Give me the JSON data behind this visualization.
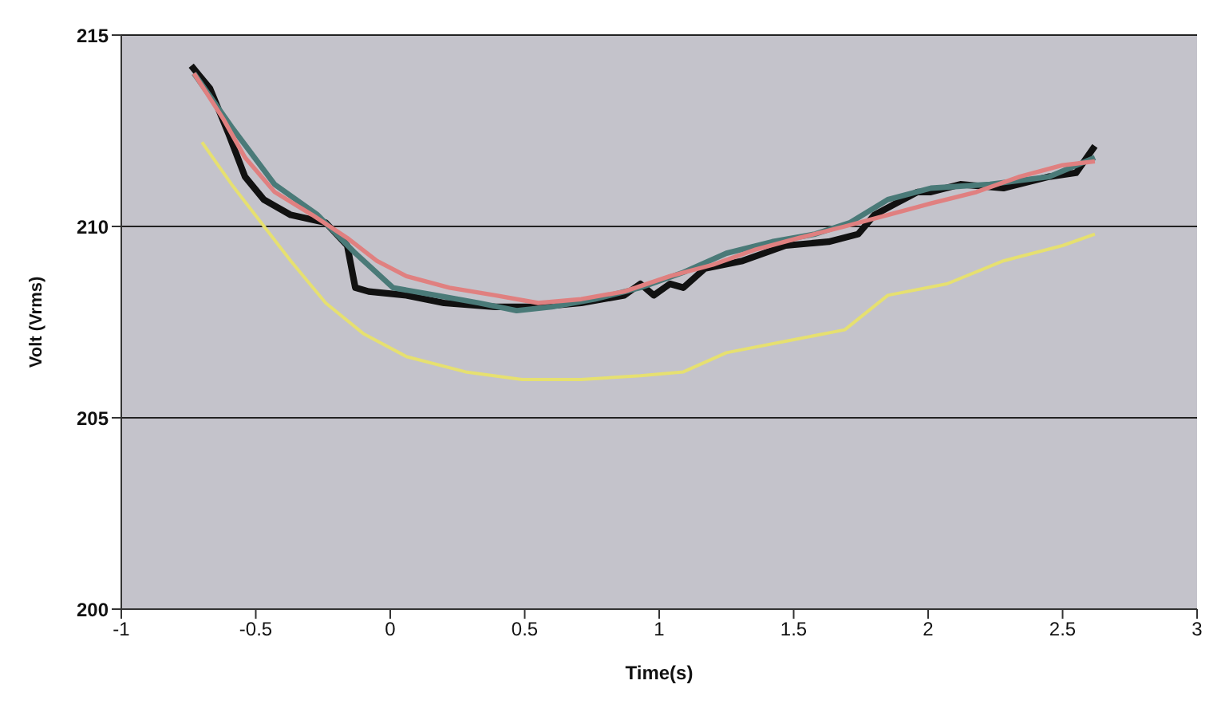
{
  "chart_data": {
    "type": "line",
    "xlabel": "Time(s)",
    "ylabel": "Volt (Vrms)",
    "xlim": [
      -1,
      3
    ],
    "xticks": [
      -1,
      -0.5,
      0,
      0.5,
      1,
      1.5,
      2,
      2.5,
      3
    ],
    "ylim": [
      200,
      215
    ],
    "yticks": [
      200,
      205,
      210,
      215
    ],
    "grid": "y",
    "marker": "none",
    "line_style": "solid",
    "series": [
      {
        "color": "#111111",
        "x": [
          -0.74,
          -0.67,
          -0.6,
          -0.54,
          -0.47,
          -0.37,
          -0.24,
          -0.16,
          -0.13,
          -0.08,
          0.06,
          0.2,
          0.39,
          0.55,
          0.71,
          0.87,
          0.93,
          0.98,
          1.04,
          1.09,
          1.17,
          1.31,
          1.47,
          1.63,
          1.74,
          1.8,
          1.88,
          1.96,
          2.01,
          2.12,
          2.28,
          2.45,
          2.55,
          2.62
        ],
        "values": [
          214.2,
          213.6,
          212.4,
          211.3,
          210.7,
          210.3,
          210.1,
          209.5,
          208.4,
          208.3,
          208.2,
          208.0,
          207.9,
          207.9,
          208.0,
          208.2,
          208.5,
          208.2,
          208.5,
          208.4,
          208.9,
          209.1,
          209.5,
          209.6,
          209.8,
          210.3,
          210.6,
          210.9,
          210.9,
          211.1,
          211.0,
          211.3,
          211.4,
          212.1
        ]
      },
      {
        "color": "#4a7a78",
        "x": [
          -0.73,
          -0.59,
          -0.43,
          -0.27,
          -0.13,
          0.01,
          0.17,
          0.33,
          0.47,
          0.6,
          0.76,
          0.93,
          1.09,
          1.25,
          1.42,
          1.58,
          1.71,
          1.85,
          2.01,
          2.23,
          2.45,
          2.62
        ],
        "values": [
          214.0,
          212.6,
          211.1,
          210.3,
          209.3,
          208.4,
          208.2,
          208.0,
          207.8,
          207.9,
          208.1,
          208.4,
          208.8,
          209.3,
          209.6,
          209.8,
          210.1,
          210.7,
          211.0,
          211.1,
          211.3,
          211.8
        ]
      },
      {
        "color": "#e08080",
        "x": [
          -0.73,
          -0.62,
          -0.54,
          -0.43,
          -0.29,
          -0.16,
          -0.05,
          0.06,
          0.22,
          0.39,
          0.55,
          0.71,
          0.87,
          1.04,
          1.2,
          1.36,
          1.52,
          1.69,
          1.85,
          2.01,
          2.18,
          2.34,
          2.5,
          2.62
        ],
        "values": [
          214.0,
          212.8,
          211.8,
          210.9,
          210.3,
          209.7,
          209.1,
          208.7,
          208.4,
          208.2,
          208.0,
          208.1,
          208.3,
          208.7,
          209.0,
          209.4,
          209.7,
          210.0,
          210.3,
          210.6,
          210.9,
          211.3,
          211.6,
          211.7
        ]
      },
      {
        "color": "#e6e070",
        "x": [
          -0.7,
          -0.59,
          -0.48,
          -0.37,
          -0.24,
          -0.1,
          0.06,
          0.28,
          0.49,
          0.71,
          0.93,
          1.09,
          1.25,
          1.47,
          1.69,
          1.85,
          2.07,
          2.28,
          2.5,
          2.62
        ],
        "values": [
          212.2,
          211.1,
          210.1,
          209.1,
          208.0,
          207.2,
          206.6,
          206.2,
          206.0,
          206.0,
          206.1,
          206.2,
          206.7,
          207.0,
          207.3,
          208.2,
          208.5,
          209.1,
          209.5,
          209.8
        ]
      }
    ]
  }
}
